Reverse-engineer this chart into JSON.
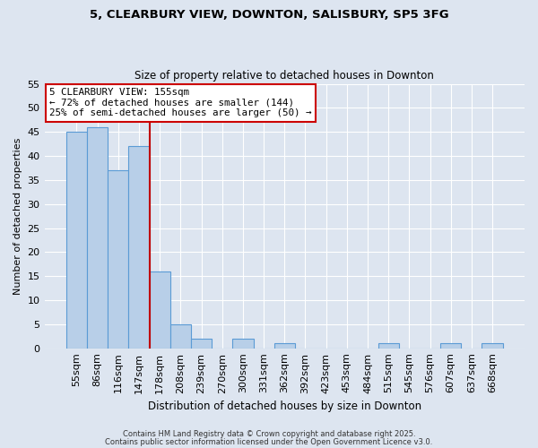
{
  "title1": "5, CLEARBURY VIEW, DOWNTON, SALISBURY, SP5 3FG",
  "title2": "Size of property relative to detached houses in Downton",
  "xlabel": "Distribution of detached houses by size in Downton",
  "ylabel": "Number of detached properties",
  "bin_labels": [
    "55sqm",
    "86sqm",
    "116sqm",
    "147sqm",
    "178sqm",
    "208sqm",
    "239sqm",
    "270sqm",
    "300sqm",
    "331sqm",
    "362sqm",
    "392sqm",
    "423sqm",
    "453sqm",
    "484sqm",
    "515sqm",
    "545sqm",
    "576sqm",
    "607sqm",
    "637sqm",
    "668sqm"
  ],
  "bar_values": [
    45,
    46,
    37,
    42,
    16,
    5,
    2,
    0,
    2,
    0,
    1,
    0,
    0,
    0,
    0,
    1,
    0,
    0,
    1,
    0,
    1
  ],
  "bar_color": "#b8cfe8",
  "bar_edge_color": "#5b9bd5",
  "background_color": "#dde5f0",
  "grid_color": "#ffffff",
  "vline_color": "#c00000",
  "vline_position": 3.5,
  "annotation_title": "5 CLEARBURY VIEW: 155sqm",
  "annotation_line1": "← 72% of detached houses are smaller (144)",
  "annotation_line2": "25% of semi-detached houses are larger (50) →",
  "annotation_box_color": "#cc0000",
  "ylim": [
    0,
    55
  ],
  "yticks": [
    0,
    5,
    10,
    15,
    20,
    25,
    30,
    35,
    40,
    45,
    50,
    55
  ],
  "footnote1": "Contains HM Land Registry data © Crown copyright and database right 2025.",
  "footnote2": "Contains public sector information licensed under the Open Government Licence v3.0."
}
